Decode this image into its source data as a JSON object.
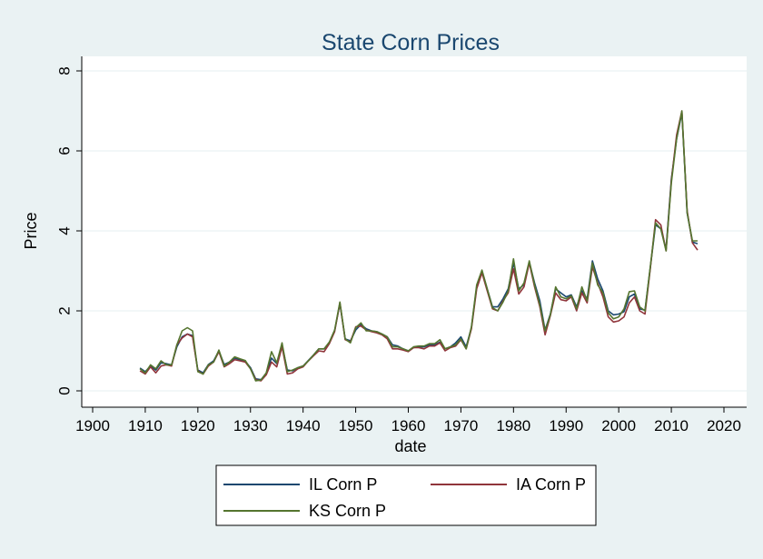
{
  "chart_data": {
    "type": "line",
    "title": "State Corn Prices",
    "xlabel": "date",
    "ylabel": "Price",
    "xlim": [
      1900,
      2020
    ],
    "ylim": [
      0,
      8
    ],
    "x_ticks": [
      "1900",
      "1910",
      "1920",
      "1930",
      "1940",
      "1950",
      "1960",
      "1970",
      "1980",
      "1990",
      "2000",
      "2010",
      "2020"
    ],
    "y_ticks": [
      "0",
      "2",
      "4",
      "6",
      "8"
    ],
    "grid": true,
    "legend_position": "bottom",
    "x": [
      1909,
      1910,
      1911,
      1912,
      1913,
      1914,
      1915,
      1916,
      1917,
      1918,
      1919,
      1920,
      1921,
      1922,
      1923,
      1924,
      1925,
      1926,
      1927,
      1928,
      1929,
      1930,
      1931,
      1932,
      1933,
      1934,
      1935,
      1936,
      1937,
      1938,
      1939,
      1940,
      1941,
      1942,
      1943,
      1944,
      1945,
      1946,
      1947,
      1948,
      1949,
      1950,
      1951,
      1952,
      1953,
      1954,
      1955,
      1956,
      1957,
      1958,
      1959,
      1960,
      1961,
      1962,
      1963,
      1964,
      1965,
      1966,
      1967,
      1968,
      1969,
      1970,
      1971,
      1972,
      1973,
      1974,
      1975,
      1976,
      1977,
      1978,
      1979,
      1980,
      1981,
      1982,
      1983,
      1984,
      1985,
      1986,
      1987,
      1988,
      1989,
      1990,
      1991,
      1992,
      1993,
      1994,
      1995,
      1996,
      1997,
      1998,
      1999,
      2000,
      2001,
      2002,
      2003,
      2004,
      2005,
      2006,
      2007,
      2008,
      2009,
      2010,
      2011,
      2012,
      2013,
      2014,
      2015
    ],
    "series": [
      {
        "name": "IL Corn P",
        "color": "#1a476f",
        "values": [
          0.57,
          0.48,
          0.62,
          0.52,
          0.7,
          0.68,
          0.65,
          1.1,
          1.35,
          1.42,
          1.38,
          0.52,
          0.45,
          0.66,
          0.75,
          1.0,
          0.66,
          0.72,
          0.82,
          0.78,
          0.74,
          0.58,
          0.3,
          0.28,
          0.44,
          0.82,
          0.68,
          1.14,
          0.52,
          0.5,
          0.58,
          0.62,
          0.76,
          0.9,
          1.05,
          1.05,
          1.2,
          1.5,
          2.18,
          1.3,
          1.25,
          1.52,
          1.66,
          1.55,
          1.5,
          1.48,
          1.42,
          1.35,
          1.15,
          1.12,
          1.05,
          1.0,
          1.08,
          1.1,
          1.1,
          1.15,
          1.15,
          1.22,
          1.05,
          1.1,
          1.2,
          1.35,
          1.1,
          1.58,
          2.6,
          3.0,
          2.55,
          2.1,
          2.1,
          2.3,
          2.55,
          3.2,
          2.55,
          2.65,
          3.22,
          2.7,
          2.25,
          1.52,
          1.92,
          2.55,
          2.45,
          2.35,
          2.4,
          2.1,
          2.5,
          2.3,
          3.25,
          2.8,
          2.5,
          2.0,
          1.9,
          1.92,
          1.98,
          2.35,
          2.42,
          2.05,
          2.02,
          3.08,
          4.15,
          4.05,
          3.55,
          5.3,
          6.3,
          6.95,
          4.45,
          3.72,
          3.68
        ]
      },
      {
        "name": "IA Corn P",
        "color": "#90353b",
        "values": [
          0.5,
          0.42,
          0.6,
          0.45,
          0.62,
          0.65,
          0.62,
          1.15,
          1.32,
          1.42,
          1.35,
          0.5,
          0.42,
          0.62,
          0.72,
          0.98,
          0.6,
          0.68,
          0.78,
          0.75,
          0.72,
          0.55,
          0.28,
          0.25,
          0.4,
          0.72,
          0.6,
          1.1,
          0.42,
          0.45,
          0.55,
          0.6,
          0.75,
          0.88,
          1.0,
          0.98,
          1.18,
          1.48,
          2.2,
          1.28,
          1.22,
          1.6,
          1.62,
          1.52,
          1.48,
          1.45,
          1.4,
          1.3,
          1.05,
          1.05,
          1.02,
          0.98,
          1.08,
          1.08,
          1.05,
          1.12,
          1.12,
          1.2,
          1.0,
          1.08,
          1.12,
          1.28,
          1.05,
          1.55,
          2.55,
          2.95,
          2.5,
          2.05,
          2.0,
          2.25,
          2.45,
          3.05,
          2.42,
          2.6,
          3.2,
          2.6,
          2.1,
          1.4,
          1.88,
          2.45,
          2.28,
          2.25,
          2.35,
          2.0,
          2.45,
          2.2,
          3.1,
          2.7,
          2.35,
          1.85,
          1.72,
          1.75,
          1.85,
          2.2,
          2.35,
          2.0,
          1.92,
          3.05,
          4.28,
          4.15,
          3.5,
          5.25,
          6.4,
          7.0,
          4.5,
          3.7,
          3.52
        ]
      },
      {
        "name": "KS Corn P",
        "color": "#55752f",
        "values": [
          0.55,
          0.45,
          0.65,
          0.55,
          0.75,
          0.65,
          0.65,
          1.15,
          1.5,
          1.58,
          1.5,
          0.48,
          0.42,
          0.65,
          0.72,
          1.02,
          0.62,
          0.72,
          0.85,
          0.8,
          0.76,
          0.55,
          0.25,
          0.27,
          0.45,
          0.98,
          0.7,
          1.2,
          0.48,
          0.52,
          0.58,
          0.62,
          0.75,
          0.9,
          1.05,
          1.05,
          1.22,
          1.52,
          2.22,
          1.3,
          1.2,
          1.58,
          1.7,
          1.5,
          1.5,
          1.48,
          1.42,
          1.35,
          1.1,
          1.1,
          1.05,
          1.0,
          1.1,
          1.12,
          1.12,
          1.18,
          1.18,
          1.28,
          1.05,
          1.1,
          1.15,
          1.3,
          1.05,
          1.6,
          2.65,
          3.02,
          2.55,
          2.08,
          2.0,
          2.22,
          2.5,
          3.3,
          2.5,
          2.7,
          3.25,
          2.65,
          2.15,
          1.5,
          1.9,
          2.6,
          2.35,
          2.3,
          2.38,
          2.05,
          2.6,
          2.25,
          3.2,
          2.65,
          2.45,
          1.95,
          1.8,
          1.85,
          2.05,
          2.48,
          2.5,
          2.1,
          2.0,
          3.1,
          4.2,
          4.05,
          3.5,
          5.2,
          6.3,
          7.0,
          4.45,
          3.75,
          3.75
        ]
      }
    ]
  }
}
